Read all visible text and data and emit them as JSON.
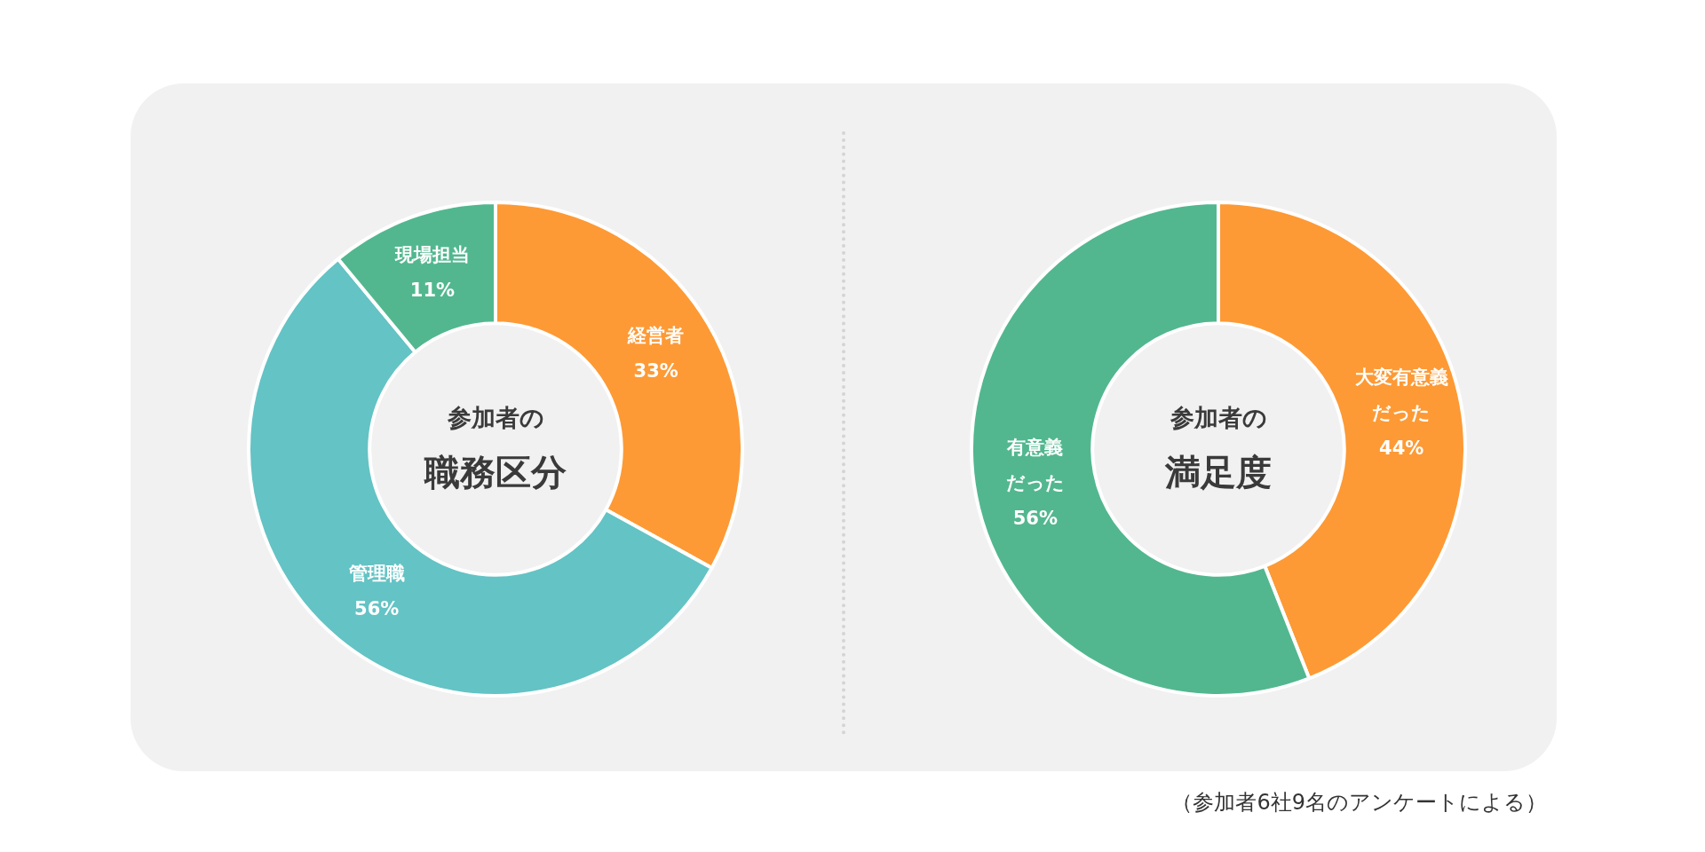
{
  "chart_data": [
    {
      "type": "donut",
      "subtitle": "参加者の",
      "title": "職務区分",
      "categories": [
        "経営者",
        "管理職",
        "現場担当"
      ],
      "values": [
        33,
        56,
        11
      ],
      "value_labels": [
        "33%",
        "56%",
        "11%"
      ],
      "colors": [
        "#fd9a35",
        "#64c3c4",
        "#52b78f"
      ],
      "data_labels": true,
      "legend": false
    },
    {
      "type": "donut",
      "subtitle": "参加者の",
      "title": "満足度",
      "categories": [
        "大変有意義だった",
        "有意義だった"
      ],
      "values": [
        44,
        56
      ],
      "value_labels": [
        "44%",
        "56%"
      ],
      "colors": [
        "#fd9a35",
        "#52b78f"
      ],
      "data_labels": true,
      "legend": false,
      "annotations": [
        "（参加者6社9名のアンケートによる）"
      ]
    }
  ]
}
